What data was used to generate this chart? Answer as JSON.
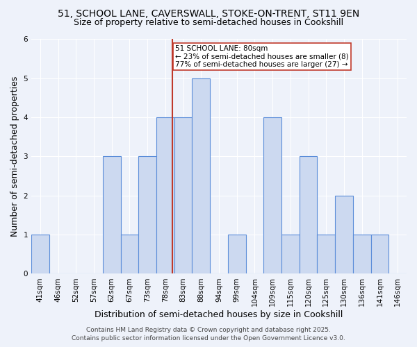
{
  "title_line1": "51, SCHOOL LANE, CAVERSWALL, STOKE-ON-TRENT, ST11 9EN",
  "title_line2": "Size of property relative to semi-detached houses in Cookshill",
  "xlabel": "Distribution of semi-detached houses by size in Cookshill",
  "ylabel": "Number of semi-detached properties",
  "bin_labels": [
    "41sqm",
    "46sqm",
    "52sqm",
    "57sqm",
    "62sqm",
    "67sqm",
    "73sqm",
    "78sqm",
    "83sqm",
    "88sqm",
    "94sqm",
    "99sqm",
    "104sqm",
    "109sqm",
    "115sqm",
    "120sqm",
    "125sqm",
    "130sqm",
    "136sqm",
    "141sqm",
    "146sqm"
  ],
  "bin_counts": [
    1,
    0,
    0,
    0,
    3,
    1,
    3,
    4,
    4,
    5,
    0,
    1,
    0,
    4,
    1,
    3,
    1,
    2,
    1,
    1,
    0
  ],
  "bar_color": "#ccd9f0",
  "bar_edge_color": "#5b8dd9",
  "vline_x_index": 7.4,
  "vline_color": "#c0392b",
  "annotation_text": "51 SCHOOL LANE: 80sqm\n← 23% of semi-detached houses are smaller (8)\n77% of semi-detached houses are larger (27) →",
  "annotation_box_color": "white",
  "annotation_box_edge_color": "#c0392b",
  "ylim": [
    0,
    6
  ],
  "yticks": [
    0,
    1,
    2,
    3,
    4,
    5,
    6
  ],
  "footer_line1": "Contains HM Land Registry data © Crown copyright and database right 2025.",
  "footer_line2": "Contains public sector information licensed under the Open Government Licence v3.0.",
  "background_color": "#eef2fa",
  "grid_color": "#ffffff",
  "title_fontsize": 10,
  "subtitle_fontsize": 9,
  "tick_fontsize": 7.5,
  "axis_label_fontsize": 9,
  "footer_fontsize": 6.5,
  "annot_fontsize": 7.5
}
